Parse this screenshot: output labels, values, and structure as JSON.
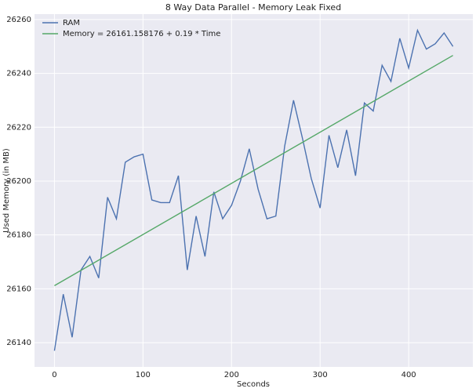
{
  "chart_data": {
    "type": "line",
    "title": "8 Way Data Parallel - Memory Leak Fixed",
    "x_label": "Seconds",
    "y_label": "Used Memory (in MB)",
    "series": [
      {
        "name": "RAM",
        "color": "#4c72b0",
        "x": [
          0,
          10,
          20,
          30,
          40,
          50,
          60,
          70,
          80,
          90,
          100,
          110,
          120,
          130,
          140,
          150,
          160,
          170,
          180,
          190,
          200,
          210,
          220,
          230,
          240,
          250,
          260,
          270,
          280,
          290,
          300,
          310,
          320,
          330,
          340,
          350,
          360,
          370,
          380,
          390,
          400,
          410,
          420,
          430,
          440,
          450
        ],
        "values": [
          26137,
          26158,
          26142,
          26167,
          26172,
          26164,
          26194,
          26186,
          26207,
          26209,
          26210,
          26193,
          26192,
          26192,
          26202,
          26167,
          26187,
          26172,
          26196,
          26186,
          26191,
          26200,
          26212,
          26197,
          26186,
          26187,
          26213,
          26230,
          26216,
          26201,
          26190,
          26217,
          26205,
          26219,
          26202,
          26229,
          26226,
          26243,
          26237,
          26253,
          26242,
          26256,
          26249,
          26251,
          26255,
          26250
        ]
      },
      {
        "name": "Memory = 26161.158176 + 0.19 * Time",
        "color": "#55a868",
        "x": [
          0,
          450
        ],
        "values": [
          26161.158176,
          26246.658176
        ]
      }
    ],
    "xlim": [
      -22.5,
      472.5
    ],
    "xticks": [
      0,
      100,
      200,
      300,
      400
    ],
    "ylim": [
      26131,
      26262
    ],
    "yticks": [
      26140,
      26160,
      26180,
      26200,
      26220,
      26240,
      26260
    ],
    "grid": true,
    "legend": "upper-left"
  }
}
